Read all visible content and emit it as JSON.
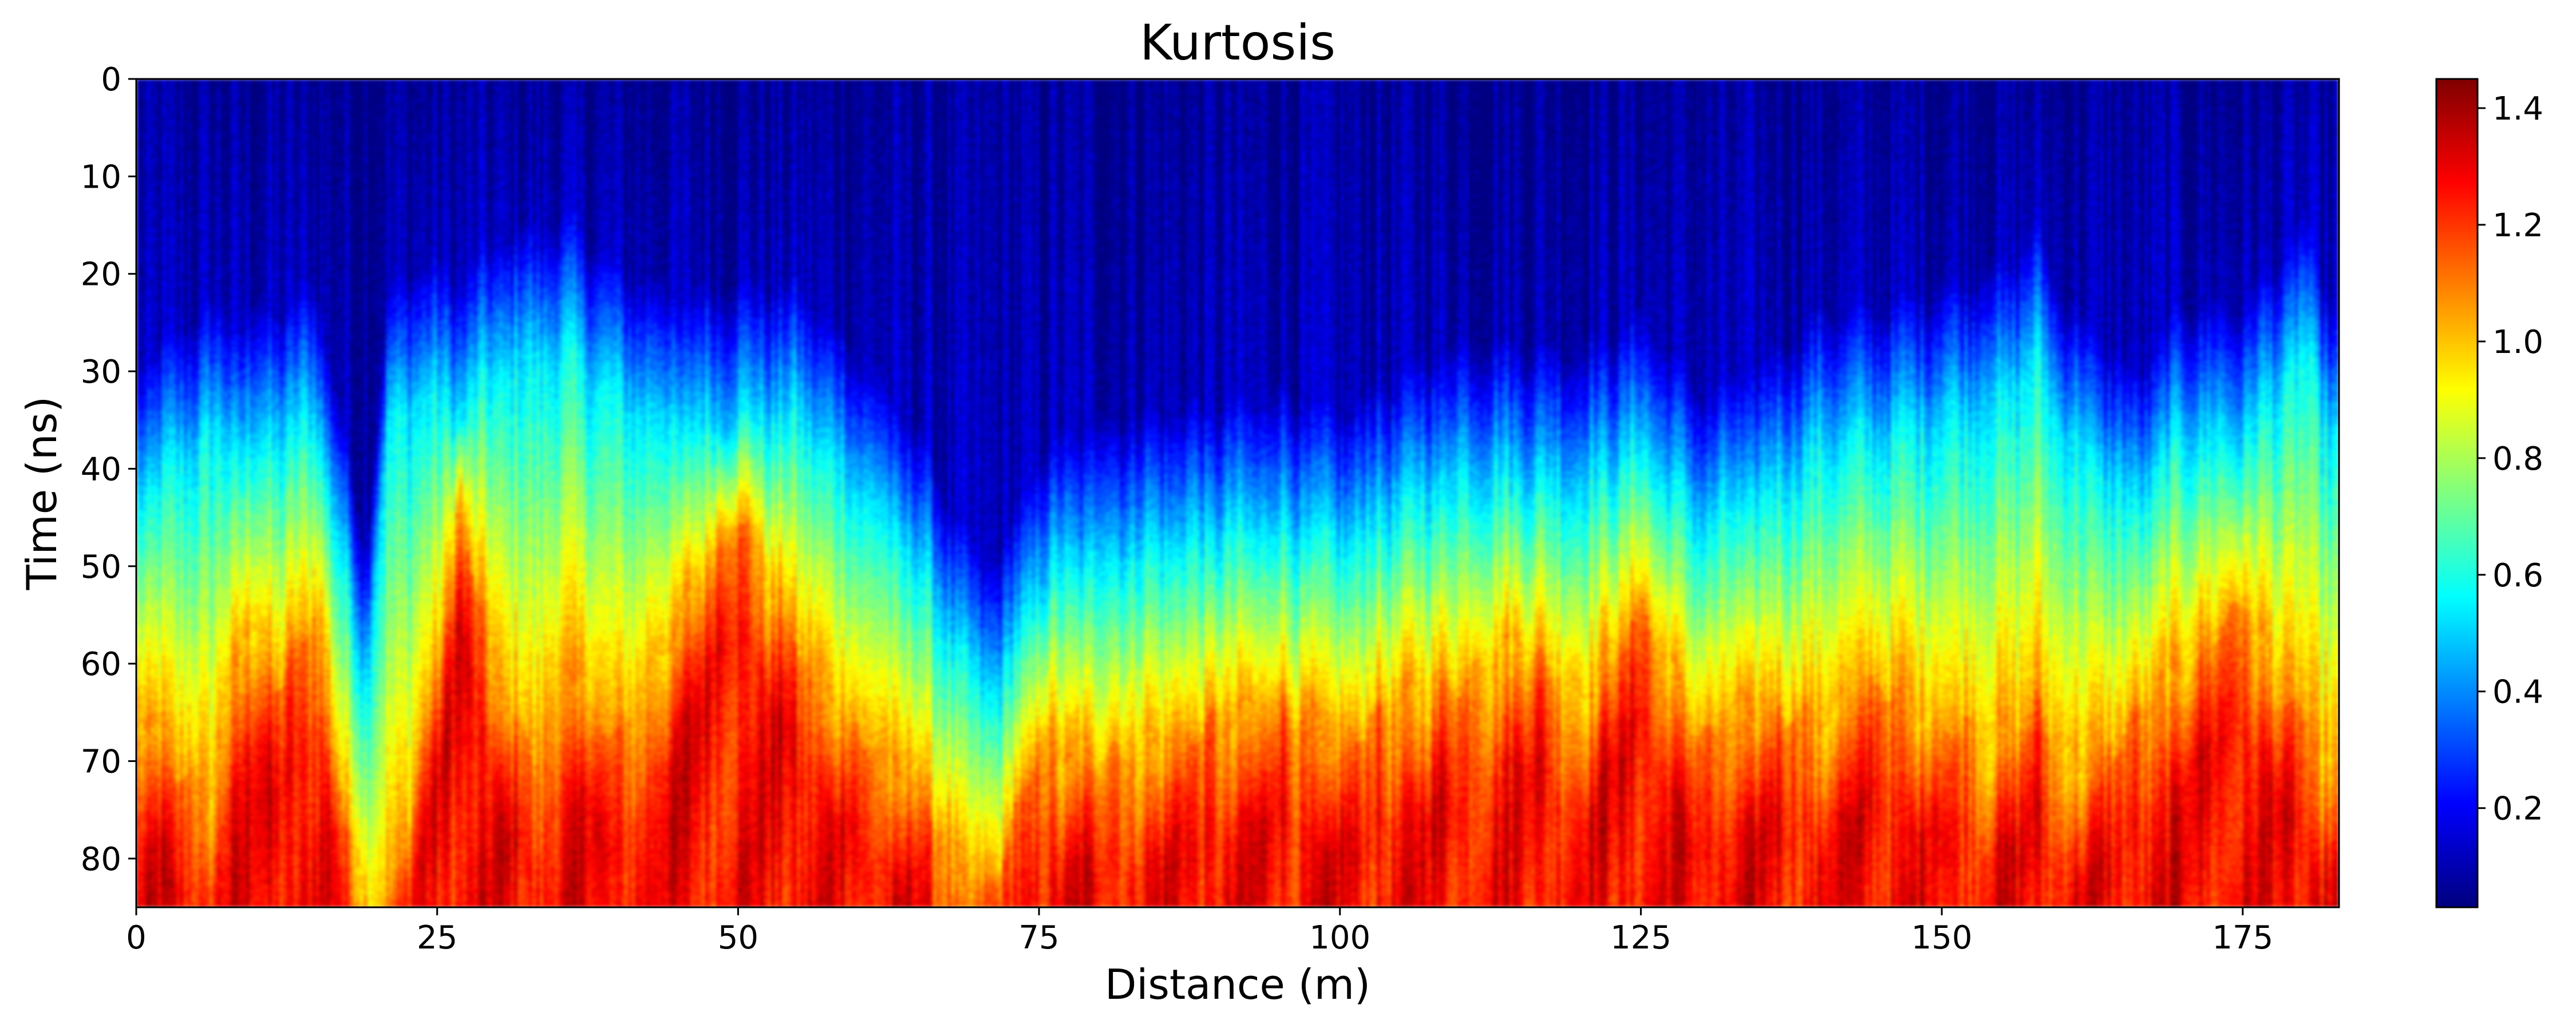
{
  "chart_data": {
    "type": "heatmap",
    "title": "Kurtosis",
    "xlabel": "Distance (m)",
    "ylabel": "Time (ns)",
    "xlim": [
      0,
      183
    ],
    "ylim": [
      85,
      0
    ],
    "xticks": [
      0,
      25,
      50,
      75,
      100,
      125,
      150,
      175
    ],
    "yticks": [
      0,
      10,
      20,
      30,
      40,
      50,
      60,
      70,
      80
    ],
    "colormap": "jet",
    "colorbar": {
      "range": [
        0.03,
        1.45
      ],
      "ticks": [
        "0.2",
        "0.4",
        "0.6",
        "0.8",
        "1.0",
        "1.2",
        "1.4"
      ]
    },
    "transition_profile": {
      "description_units": "distance (m) -> time (ns) where kurtosis rises above ~0.5",
      "distance": [
        0,
        3,
        6,
        9,
        12,
        15,
        17,
        19,
        21,
        23,
        25,
        27,
        30,
        33,
        36,
        40,
        45,
        50,
        55,
        60,
        65,
        68,
        70,
        72,
        75,
        80,
        85,
        90,
        95,
        100,
        105,
        110,
        115,
        120,
        125,
        130,
        135,
        140,
        145,
        150,
        155,
        158,
        160,
        163,
        166,
        170,
        175,
        178,
        180,
        183
      ],
      "time": [
        43,
        40,
        37,
        38,
        37,
        35,
        48,
        62,
        36,
        33,
        33,
        34,
        30,
        29,
        28,
        33,
        36,
        35,
        35,
        42,
        50,
        58,
        63,
        62,
        52,
        49,
        48,
        47,
        46,
        48,
        44,
        41,
        41,
        42,
        38,
        46,
        43,
        38,
        37,
        35,
        33,
        29,
        36,
        40,
        44,
        37,
        37,
        32,
        28,
        38
      ]
    },
    "hot_zone_profile": {
      "description_units": "distance (m) -> time (ns) where kurtosis exceeds ~1.1",
      "distance": [
        0,
        3,
        6,
        9,
        12,
        15,
        17,
        19,
        21,
        23,
        25,
        27,
        30,
        33,
        36,
        40,
        45,
        50,
        55,
        60,
        65,
        68,
        70,
        72,
        75,
        80,
        85,
        90,
        95,
        100,
        105,
        110,
        115,
        120,
        125,
        130,
        135,
        140,
        145,
        150,
        155,
        158,
        160,
        163,
        166,
        170,
        175,
        178,
        180,
        183
      ],
      "time": [
        64,
        70,
        74,
        56,
        62,
        54,
        72,
        86,
        86,
        74,
        60,
        44,
        62,
        70,
        60,
        68,
        56,
        44,
        58,
        67,
        72,
        80,
        84,
        80,
        68,
        70,
        68,
        66,
        64,
        68,
        64,
        62,
        58,
        64,
        54,
        68,
        64,
        66,
        62,
        66,
        68,
        64,
        70,
        70,
        66,
        60,
        54,
        62,
        66,
        72
      ]
    }
  }
}
